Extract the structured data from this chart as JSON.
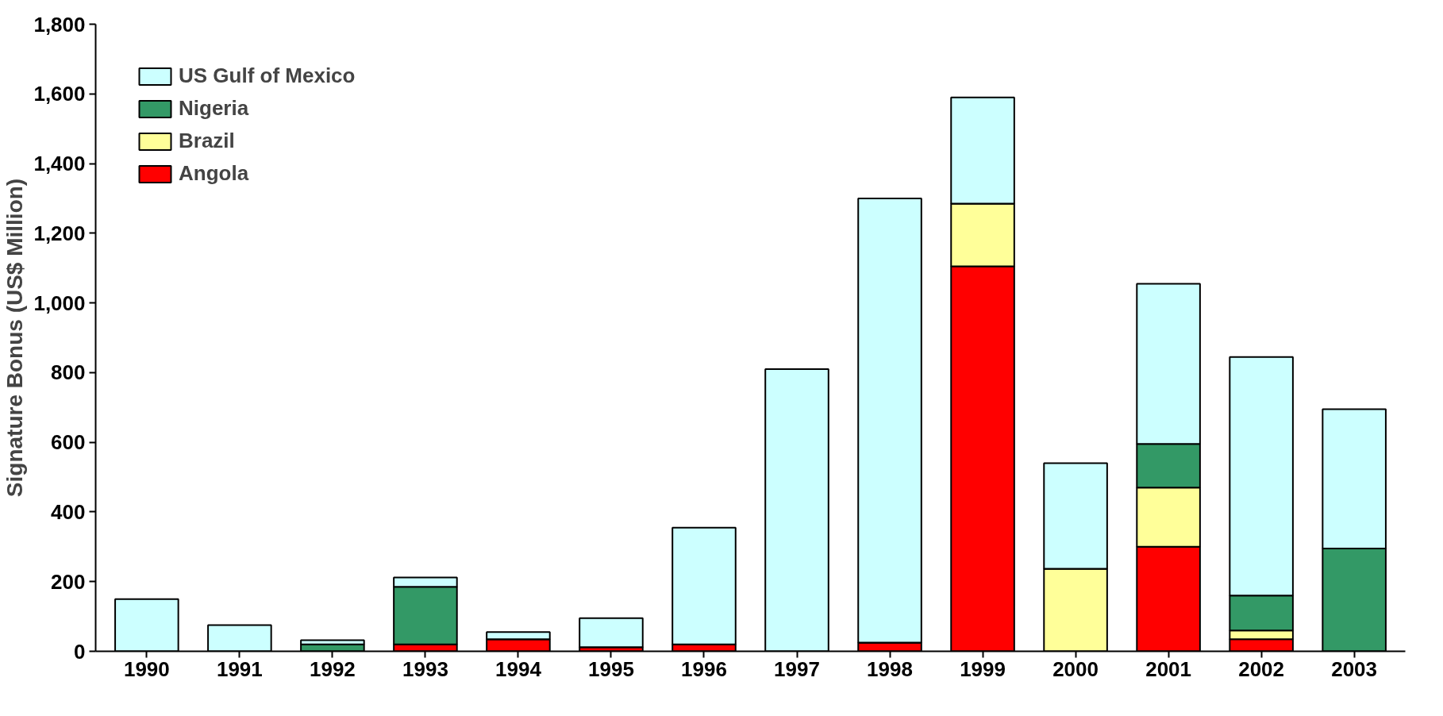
{
  "chart_data": {
    "type": "bar",
    "stacked": true,
    "ylabel": "Signature Bonus (US$ Million)",
    "categories": [
      "1990",
      "1991",
      "1992",
      "1993",
      "1994",
      "1995",
      "1996",
      "1997",
      "1998",
      "1999",
      "2000",
      "2001",
      "2002",
      "2003"
    ],
    "series": [
      {
        "name": "Angola",
        "color": "#ff0000",
        "values": [
          0,
          0,
          0,
          20,
          35,
          12,
          20,
          0,
          25,
          1105,
          0,
          300,
          35,
          null
        ]
      },
      {
        "name": "Brazil",
        "color": "#ffff99",
        "values": [
          0,
          0,
          0,
          0,
          0,
          0,
          0,
          0,
          0,
          180,
          237,
          170,
          25,
          0
        ]
      },
      {
        "name": "Nigeria",
        "color": "#339966",
        "values": [
          0,
          0,
          20,
          165,
          0,
          0,
          0,
          0,
          0,
          0,
          0,
          125,
          100,
          295
        ]
      },
      {
        "name": "US Gulf of Mexico",
        "color": "#ccffff",
        "values": [
          150,
          75,
          12,
          27,
          20,
          83,
          335,
          810,
          1275,
          305,
          303,
          460,
          685,
          400
        ]
      }
    ],
    "ylim": [
      0,
      1800
    ],
    "yticks": [
      0,
      {
        "value": 200,
        "label": "200"
      },
      {
        "value": 400,
        "label": "400"
      },
      {
        "value": 600,
        "label": "600"
      },
      {
        "value": 800,
        "label": "800"
      },
      {
        "value": 1000,
        "label": "1,000"
      },
      {
        "value": 1200,
        "label": "1,200"
      },
      {
        "value": 1400,
        "label": "1,400"
      },
      {
        "value": 1600,
        "label": "1,600"
      },
      {
        "value": 1800,
        "label": "1,800"
      }
    ],
    "grid": false,
    "legend": "top left"
  }
}
